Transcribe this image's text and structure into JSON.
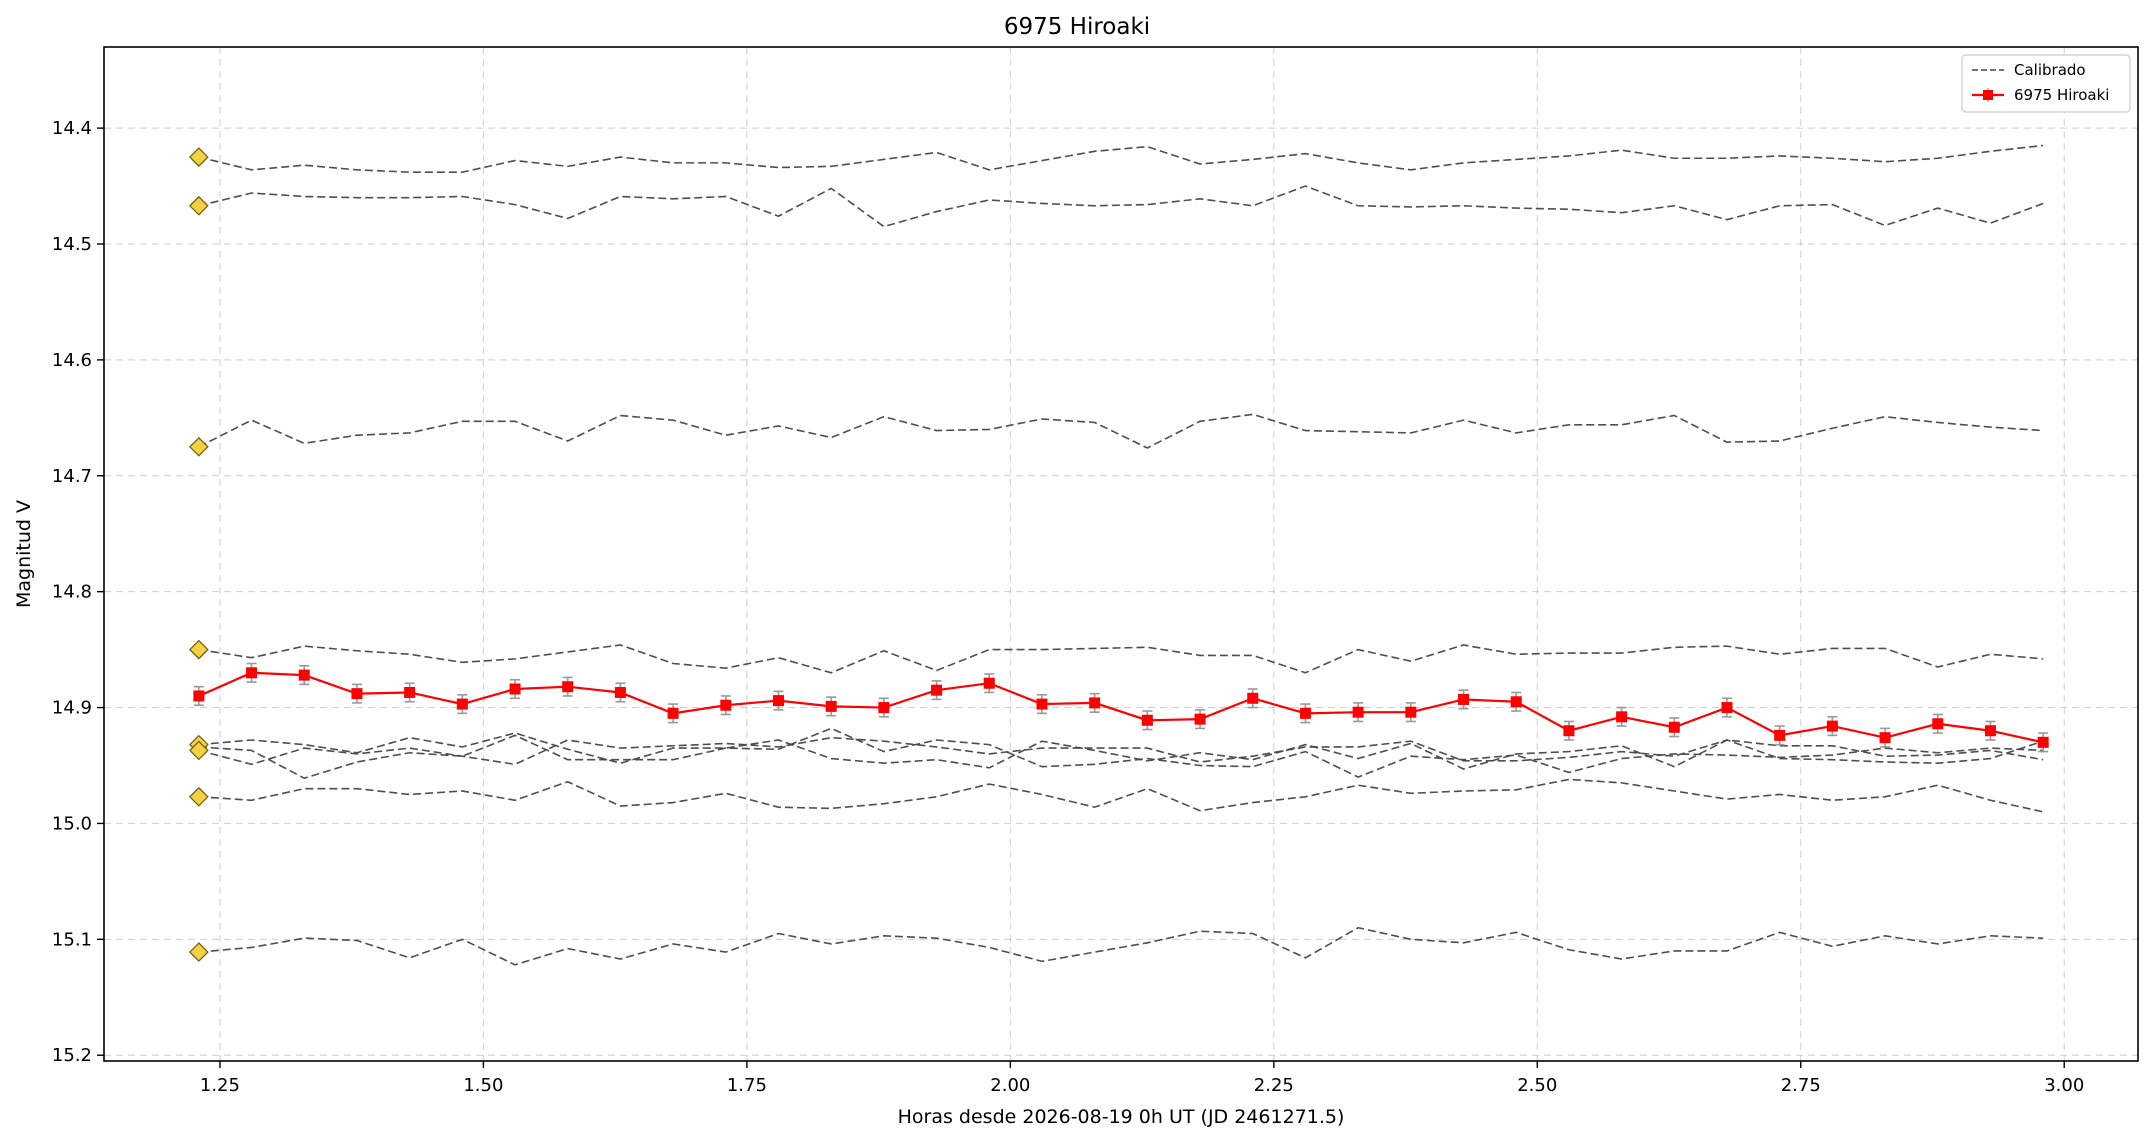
{
  "chart_data": {
    "type": "line",
    "title": "6975 Hiroaki",
    "xlabel": "Horas desde 2026-08-19 0h UT (JD 2461271.5)",
    "ylabel": "Magnitud V",
    "xlim": [
      1.14,
      3.07
    ],
    "ylim": [
      15.205,
      14.33
    ],
    "y_inverted": true,
    "grid": true,
    "legend_position": "top-right",
    "xticks": [
      "1.25",
      "1.50",
      "1.75",
      "2.00",
      "2.25",
      "2.50",
      "2.75",
      "3.00"
    ],
    "xtick_values": [
      1.25,
      1.5,
      1.75,
      2.0,
      2.25,
      2.5,
      2.75,
      3.0
    ],
    "yticks": [
      "14.4",
      "14.5",
      "14.6",
      "14.7",
      "14.8",
      "14.9",
      "15.0",
      "15.1",
      "15.2"
    ],
    "ytick_values": [
      14.4,
      14.5,
      14.6,
      14.7,
      14.8,
      14.9,
      15.0,
      15.1,
      15.2
    ],
    "x": [
      1.23,
      1.28,
      1.33,
      1.38,
      1.43,
      1.48,
      1.53,
      1.58,
      1.63,
      1.68,
      1.73,
      1.78,
      1.83,
      1.88,
      1.93,
      1.98,
      2.03,
      2.08,
      2.13,
      2.18,
      2.23,
      2.28,
      2.33,
      2.38,
      2.43,
      2.48,
      2.53,
      2.58,
      2.63,
      2.68,
      2.73,
      2.78,
      2.83,
      2.88,
      2.93,
      2.98
    ],
    "legend": [
      {
        "label": "Calibrado",
        "style": "dashed",
        "color": "#444444"
      },
      {
        "label": "6975 Hiroaki",
        "style": "solid-marker",
        "color": "#ff0000"
      }
    ],
    "reference_markers": {
      "x": 1.23,
      "y": [
        14.425,
        14.467,
        14.675,
        14.85,
        14.932,
        14.937,
        14.977,
        15.111
      ],
      "color": "#f5d142"
    },
    "series": [
      {
        "name": "Calibrado",
        "values": [
          14.425,
          14.436,
          14.432,
          14.436,
          14.438,
          14.438,
          14.428,
          14.433,
          14.425,
          14.43,
          14.43,
          14.434,
          14.433,
          14.427,
          14.421,
          14.436,
          14.428,
          14.42,
          14.416,
          14.431,
          14.427,
          14.422,
          14.43,
          14.436,
          14.43,
          14.427,
          14.424,
          14.419,
          14.426,
          14.426,
          14.424,
          14.426,
          14.429,
          14.426,
          14.42,
          14.415
        ]
      },
      {
        "name": "Calibrado",
        "values": [
          14.467,
          14.456,
          14.459,
          14.46,
          14.46,
          14.459,
          14.466,
          14.478,
          14.459,
          14.461,
          14.459,
          14.476,
          14.452,
          14.485,
          14.472,
          14.462,
          14.465,
          14.467,
          14.466,
          14.461,
          14.467,
          14.45,
          14.467,
          14.468,
          14.467,
          14.469,
          14.47,
          14.473,
          14.467,
          14.479,
          14.467,
          14.466,
          14.484,
          14.469,
          14.482,
          14.465
        ]
      },
      {
        "name": "Calibrado",
        "values": [
          14.675,
          14.652,
          14.672,
          14.665,
          14.663,
          14.653,
          14.653,
          14.67,
          14.648,
          14.652,
          14.665,
          14.657,
          14.667,
          14.649,
          14.661,
          14.66,
          14.651,
          14.654,
          14.676,
          14.653,
          14.647,
          14.661,
          14.662,
          14.663,
          14.652,
          14.663,
          14.656,
          14.656,
          14.648,
          14.671,
          14.67,
          14.659,
          14.649,
          14.654,
          14.658,
          14.661
        ]
      },
      {
        "name": "Calibrado",
        "values": [
          14.85,
          14.857,
          14.847,
          14.851,
          14.854,
          14.861,
          14.858,
          14.852,
          14.846,
          14.862,
          14.866,
          14.857,
          14.87,
          14.851,
          14.868,
          14.85,
          14.85,
          14.849,
          14.848,
          14.855,
          14.855,
          14.87,
          14.85,
          14.86,
          14.846,
          14.854,
          14.853,
          14.853,
          14.848,
          14.847,
          14.854,
          14.849,
          14.849,
          14.865,
          14.854,
          14.858
        ]
      },
      {
        "name": "Calibrado",
        "values": [
          14.932,
          14.928,
          14.932,
          14.939,
          14.926,
          14.934,
          14.922,
          14.936,
          14.948,
          14.935,
          14.935,
          14.928,
          14.944,
          14.948,
          14.945,
          14.952,
          14.929,
          14.937,
          14.946,
          14.939,
          14.945,
          14.932,
          14.944,
          14.931,
          14.953,
          14.94,
          14.938,
          14.933,
          14.951,
          14.928,
          14.933,
          14.933,
          14.942,
          14.941,
          14.937,
          14.945
        ]
      },
      {
        "name": "Calibrado",
        "values": [
          14.934,
          14.937,
          14.961,
          14.947,
          14.939,
          14.942,
          14.924,
          14.945,
          14.945,
          14.945,
          14.935,
          14.936,
          14.918,
          14.938,
          14.928,
          14.932,
          14.951,
          14.949,
          14.944,
          14.95,
          14.951,
          14.938,
          14.96,
          14.942,
          14.945,
          14.941,
          14.956,
          14.944,
          14.94,
          14.941,
          14.943,
          14.941,
          14.935,
          14.939,
          14.935,
          14.937
        ]
      },
      {
        "name": "Calibrado",
        "values": [
          14.937,
          14.949,
          14.935,
          14.94,
          14.935,
          14.942,
          14.949,
          14.928,
          14.935,
          14.933,
          14.931,
          14.934,
          14.926,
          14.929,
          14.934,
          14.94,
          14.935,
          14.935,
          14.935,
          14.947,
          14.942,
          14.934,
          14.934,
          14.929,
          14.946,
          14.946,
          14.943,
          14.938,
          14.942,
          14.928,
          14.944,
          14.945,
          14.947,
          14.948,
          14.944,
          14.929
        ]
      },
      {
        "name": "Calibrado",
        "values": [
          14.977,
          14.98,
          14.97,
          14.97,
          14.975,
          14.972,
          14.98,
          14.964,
          14.985,
          14.982,
          14.974,
          14.986,
          14.987,
          14.983,
          14.977,
          14.966,
          14.975,
          14.986,
          14.97,
          14.989,
          14.982,
          14.977,
          14.967,
          14.974,
          14.972,
          14.971,
          14.962,
          14.965,
          14.972,
          14.979,
          14.975,
          14.98,
          14.977,
          14.967,
          14.98,
          14.99
        ]
      },
      {
        "name": "Calibrado",
        "values": [
          15.111,
          15.107,
          15.099,
          15.101,
          15.116,
          15.1,
          15.122,
          15.108,
          15.117,
          15.104,
          15.111,
          15.095,
          15.104,
          15.097,
          15.099,
          15.107,
          15.119,
          15.111,
          15.103,
          15.093,
          15.095,
          15.116,
          15.09,
          15.1,
          15.103,
          15.094,
          15.109,
          15.117,
          15.11,
          15.11,
          15.094,
          15.106,
          15.097,
          15.104,
          15.097,
          15.099
        ]
      },
      {
        "name": "6975 Hiroaki",
        "values": [
          14.89,
          14.87,
          14.872,
          14.888,
          14.887,
          14.897,
          14.884,
          14.882,
          14.887,
          14.905,
          14.898,
          14.894,
          14.899,
          14.9,
          14.885,
          14.879,
          14.897,
          14.896,
          14.911,
          14.91,
          14.892,
          14.905,
          14.904,
          14.904,
          14.893,
          14.895,
          14.92,
          14.908,
          14.917,
          14.9,
          14.924,
          14.916,
          14.926,
          14.914,
          14.92,
          14.93
        ],
        "error": 0.008
      }
    ]
  }
}
